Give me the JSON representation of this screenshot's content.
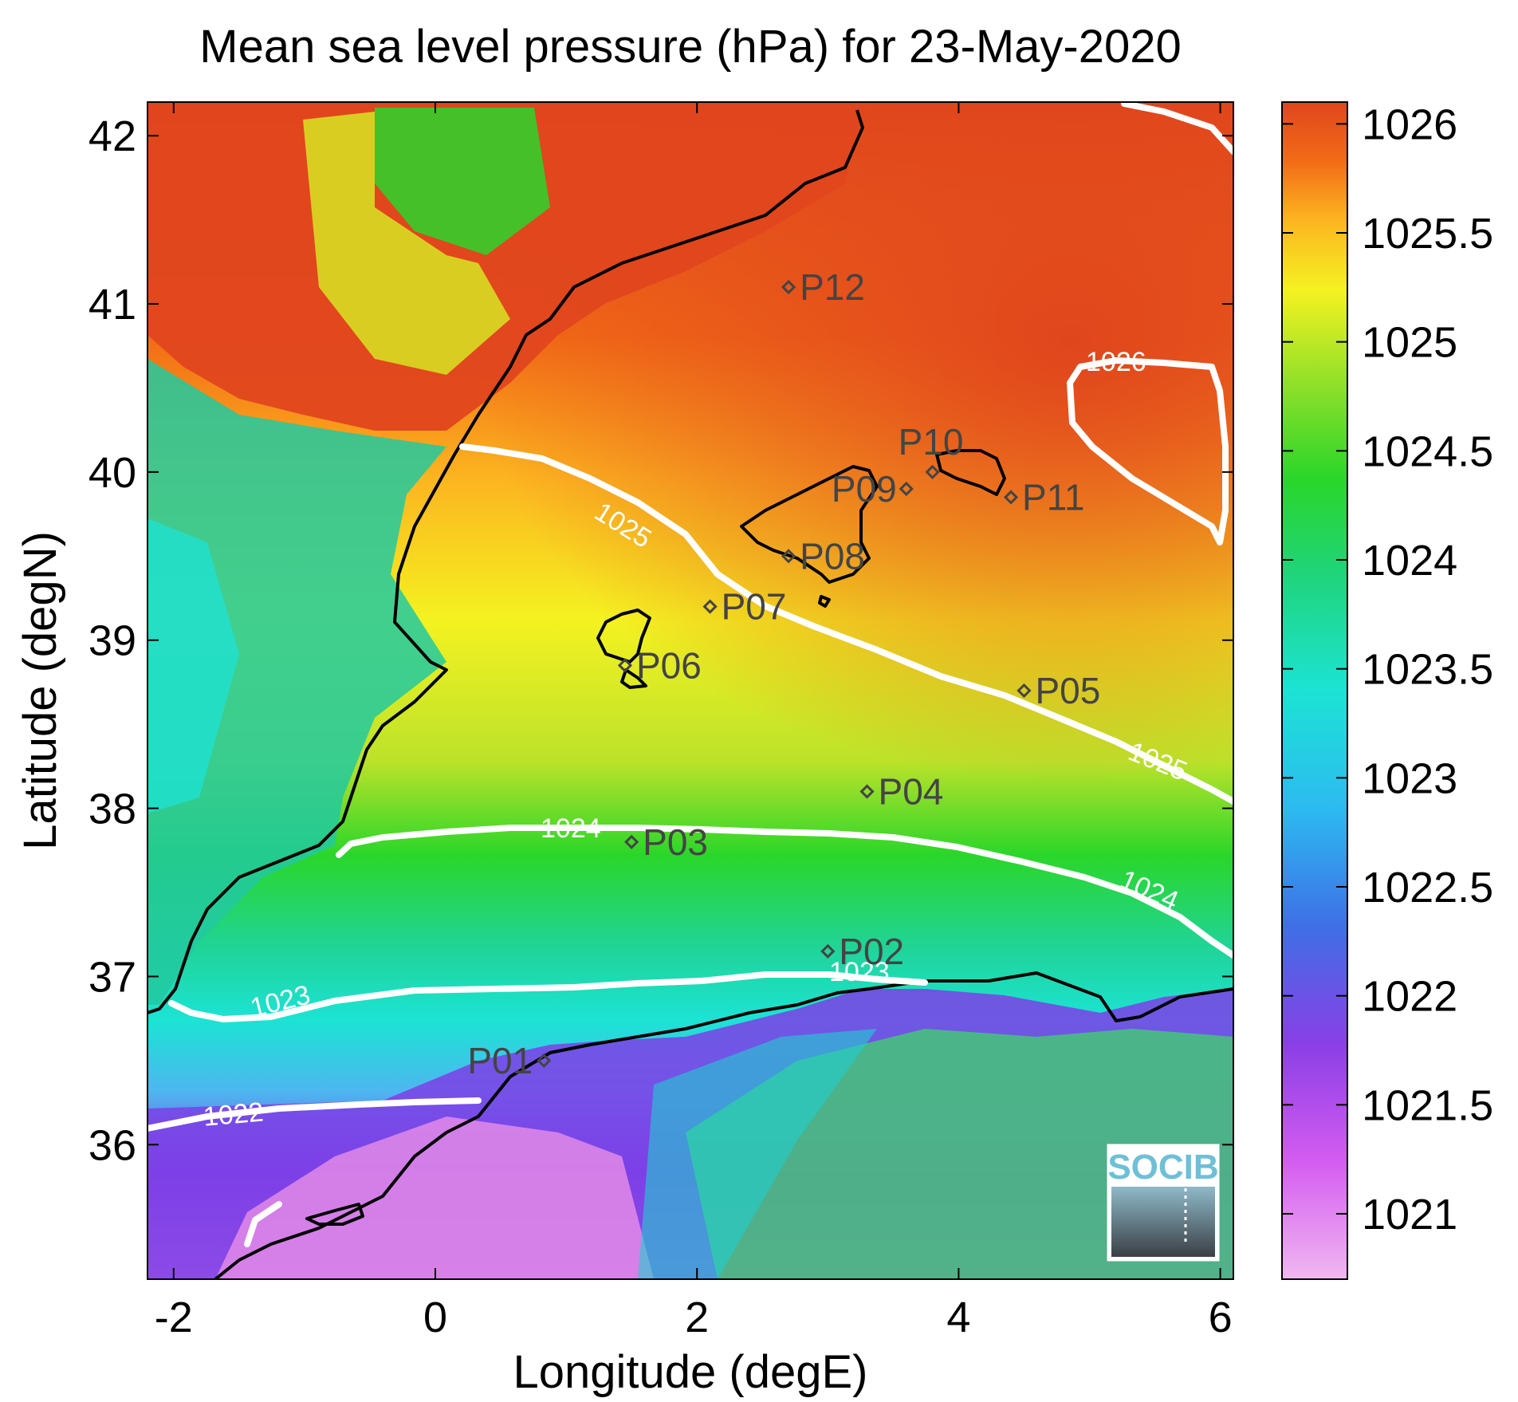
{
  "title": "Mean sea level pressure (hPa) for 23-May-2020",
  "xlabel": "Longitude (degE)",
  "ylabel": "Latitude (degN)",
  "x_ticks": [
    "-2",
    "0",
    "2",
    "4",
    "6"
  ],
  "y_ticks": [
    "36",
    "37",
    "38",
    "39",
    "40",
    "41",
    "42"
  ],
  "colorbar_ticks": [
    "1021",
    "1021.5",
    "1022",
    "1022.5",
    "1023",
    "1023.5",
    "1024",
    "1024.5",
    "1025",
    "1025.5",
    "1026"
  ],
  "contour_labels": {
    "c1022": "1022",
    "c1023a": "1023",
    "c1023b": "1023",
    "c1024a": "1024",
    "c1024b": "1024",
    "c1025a": "1025",
    "c1025b": "1025",
    "c1026": "1026"
  },
  "stations": [
    {
      "id": "P01",
      "lon": 0.83,
      "lat": 36.5
    },
    {
      "id": "P02",
      "lon": 3.0,
      "lat": 37.15
    },
    {
      "id": "P03",
      "lon": 1.5,
      "lat": 37.8
    },
    {
      "id": "P04",
      "lon": 3.3,
      "lat": 38.1
    },
    {
      "id": "P05",
      "lon": 4.5,
      "lat": 38.7
    },
    {
      "id": "P06",
      "lon": 1.45,
      "lat": 38.85
    },
    {
      "id": "P07",
      "lon": 2.1,
      "lat": 39.2
    },
    {
      "id": "P08",
      "lon": 2.7,
      "lat": 39.5
    },
    {
      "id": "P09",
      "lon": 3.6,
      "lat": 39.9
    },
    {
      "id": "P10",
      "lon": 3.8,
      "lat": 40.0
    },
    {
      "id": "P11",
      "lon": 4.4,
      "lat": 39.85
    },
    {
      "id": "P12",
      "lon": 2.7,
      "lat": 41.1
    }
  ],
  "logo": {
    "text": "SOCIB"
  },
  "colors": {
    "contour": "#ffffff",
    "coastline": "#000000",
    "station": "#444444",
    "high": "#e0461d",
    "mid": "#2ad62a",
    "low": "#f0b8f0"
  },
  "chart_data": {
    "type": "heatmap",
    "title": "Mean sea level pressure (hPa) for 23-May-2020",
    "xlabel": "Longitude (degE)",
    "ylabel": "Latitude (degN)",
    "xlim": [
      -2.2,
      6.1
    ],
    "ylim": [
      35.2,
      42.2
    ],
    "clim": [
      1020.7,
      1026.1
    ],
    "contour_levels": [
      1022,
      1023,
      1024,
      1025,
      1026
    ],
    "colormap": "jet-like (pink-violet-blue-cyan-green-yellow-orange-red)"
  }
}
